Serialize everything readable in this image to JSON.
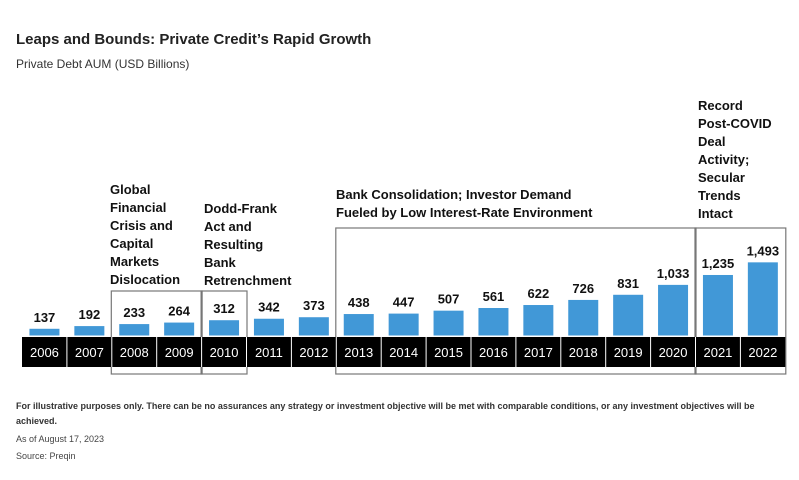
{
  "chart_data": {
    "type": "bar",
    "title": "Leaps and Bounds: Private Credit’s Rapid Growth",
    "subtitle": "Private Debt AUM (USD Billions)",
    "categories": [
      "2006",
      "2007",
      "2008",
      "2009",
      "2010",
      "2011",
      "2012",
      "2013",
      "2014",
      "2015",
      "2016",
      "2017",
      "2018",
      "2019",
      "2020",
      "2021",
      "2022"
    ],
    "values": [
      137,
      192,
      233,
      264,
      312,
      342,
      373,
      438,
      447,
      507,
      561,
      622,
      726,
      831,
      1033,
      1235,
      1493
    ],
    "value_labels": [
      "137",
      "192",
      "233",
      "264",
      "312",
      "342",
      "373",
      "438",
      "447",
      "507",
      "561",
      "622",
      "726",
      "831",
      "1,033",
      "1,235",
      "1,493"
    ],
    "ylim": [
      0,
      1500
    ],
    "grid": false,
    "bar_color": "#4198d7",
    "axis_band_color": "#000000",
    "annotations": [
      {
        "label_lines": [
          "Global",
          "Financial",
          "Crisis and",
          "Capital",
          "Markets",
          "Dislocation"
        ],
        "from": "2008",
        "to": "2009"
      },
      {
        "label_lines": [
          "Dodd-Frank",
          "Act and",
          "Resulting",
          "Bank",
          "Retrenchment"
        ],
        "from": "2010",
        "to": "2010"
      },
      {
        "label_lines": [
          "Bank Consolidation; Investor Demand",
          "Fueled by Low Interest-Rate Environment"
        ],
        "from": "2013",
        "to": "2020"
      },
      {
        "label_lines": [
          "Record",
          "Post-COVID",
          "Deal",
          "Activity;",
          "Secular",
          "Trends",
          "Intact"
        ],
        "from": "2021",
        "to": "2022"
      }
    ]
  },
  "footer": {
    "disclaimer": "For illustrative purposes only. There can be no assurances any strategy or investment objective will be met with comparable conditions, or any investment objectives will be achieved.",
    "as_of": "As of August 17, 2023",
    "source": "Source: Preqin"
  }
}
